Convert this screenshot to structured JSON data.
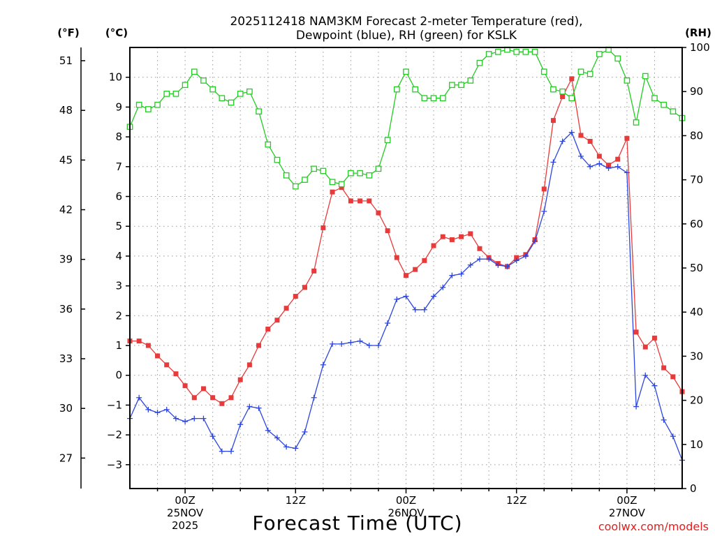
{
  "chart_data": {
    "type": "line",
    "title_line1": "2025112418 NAM3KM Forecast 2-meter Temperature (red),",
    "title_line2": "Dewpoint (blue), RH (green) for KSLK",
    "xlabel": "Forecast Time (UTC)",
    "credit": "coolwx.com/models",
    "units": {
      "fahrenheit": "(°F)",
      "celsius": "(°C)",
      "rh": "(RH)"
    },
    "x_hours_range": [
      -6,
      54
    ],
    "y_celsius_range": [
      -3.8,
      11.0
    ],
    "y_rh_range": [
      0,
      100
    ],
    "celsius_ticks": [
      -3,
      -2,
      -1,
      0,
      1,
      2,
      3,
      4,
      5,
      6,
      7,
      8,
      9,
      10
    ],
    "fahrenheit_ticks": [
      27,
      30,
      33,
      36,
      39,
      42,
      45,
      48,
      51
    ],
    "rh_ticks": [
      0,
      10,
      20,
      30,
      40,
      50,
      60,
      70,
      80,
      90,
      100
    ],
    "x_ticks": [
      {
        "hour": 0,
        "lines": [
          "00Z",
          "25NOV",
          "2025"
        ]
      },
      {
        "hour": 12,
        "lines": [
          "12Z"
        ]
      },
      {
        "hour": 24,
        "lines": [
          "00Z",
          "26NOV"
        ]
      },
      {
        "hour": 36,
        "lines": [
          "12Z"
        ]
      },
      {
        "hour": 48,
        "lines": [
          "00Z",
          "27NOV"
        ]
      }
    ],
    "series": [
      {
        "name": "Temperature",
        "units": "C",
        "color": "#e83a3a",
        "marker": "filled-square",
        "x": [
          -6,
          -5,
          -4,
          -3,
          -2,
          -1,
          0,
          1,
          2,
          3,
          4,
          5,
          6,
          7,
          8,
          9,
          10,
          11,
          12,
          13,
          14,
          15,
          16,
          17,
          18,
          19,
          20,
          21,
          22,
          23,
          24,
          25,
          26,
          27,
          28,
          29,
          30,
          31,
          32,
          33,
          34,
          35,
          36,
          37,
          38,
          39,
          40,
          41,
          42,
          43,
          44,
          45,
          46,
          47,
          48,
          49,
          50,
          51,
          52,
          53,
          54
        ],
        "values": [
          1.15,
          1.15,
          1.0,
          0.65,
          0.35,
          0.05,
          -0.35,
          -0.75,
          -0.45,
          -0.75,
          -0.95,
          -0.75,
          -0.15,
          0.35,
          1.0,
          1.55,
          1.85,
          2.25,
          2.65,
          2.95,
          3.5,
          4.95,
          6.15,
          6.3,
          5.85,
          5.85,
          5.85,
          5.45,
          4.85,
          3.95,
          3.35,
          3.55,
          3.85,
          4.35,
          4.65,
          4.55,
          4.65,
          4.75,
          4.25,
          3.95,
          3.75,
          3.65,
          3.95,
          4.05,
          4.55,
          6.25,
          8.55,
          9.35,
          9.95,
          8.05,
          7.85,
          7.35,
          7.05,
          7.25,
          7.95,
          1.45,
          0.95,
          1.25,
          0.25,
          -0.05,
          -0.55
        ]
      },
      {
        "name": "Dewpoint",
        "units": "C",
        "color": "#2b45e0",
        "marker": "plus",
        "x": [
          -6,
          -5,
          -4,
          -3,
          -2,
          -1,
          0,
          1,
          2,
          3,
          4,
          5,
          6,
          7,
          8,
          9,
          10,
          11,
          12,
          13,
          14,
          15,
          16,
          17,
          18,
          19,
          20,
          21,
          22,
          23,
          24,
          25,
          26,
          27,
          28,
          29,
          30,
          31,
          32,
          33,
          34,
          35,
          36,
          37,
          38,
          39,
          40,
          41,
          42,
          43,
          44,
          45,
          46,
          47,
          48,
          49,
          50,
          51,
          52,
          53,
          54
        ],
        "values": [
          -1.45,
          -0.75,
          -1.15,
          -1.25,
          -1.15,
          -1.45,
          -1.55,
          -1.45,
          -1.45,
          -2.05,
          -2.55,
          -2.55,
          -1.65,
          -1.05,
          -1.1,
          -1.85,
          -2.1,
          -2.4,
          -2.45,
          -1.9,
          -0.75,
          0.35,
          1.05,
          1.05,
          1.1,
          1.15,
          1.0,
          1.0,
          1.75,
          2.55,
          2.65,
          2.2,
          2.2,
          2.65,
          2.95,
          3.35,
          3.4,
          3.7,
          3.9,
          3.9,
          3.7,
          3.65,
          3.85,
          4.0,
          4.5,
          5.5,
          7.15,
          7.85,
          8.15,
          7.35,
          7.0,
          7.1,
          6.95,
          7.0,
          6.8,
          -1.05,
          0.0,
          -0.35,
          -1.5,
          -2.05,
          -2.85
        ]
      },
      {
        "name": "Relative Humidity",
        "units": "%",
        "color": "#22cc22",
        "marker": "open-square",
        "x": [
          -6,
          -5,
          -4,
          -3,
          -2,
          -1,
          0,
          1,
          2,
          3,
          4,
          5,
          6,
          7,
          8,
          9,
          10,
          11,
          12,
          13,
          14,
          15,
          16,
          17,
          18,
          19,
          20,
          21,
          22,
          23,
          24,
          25,
          26,
          27,
          28,
          29,
          30,
          31,
          32,
          33,
          34,
          35,
          36,
          37,
          38,
          39,
          40,
          41,
          42,
          43,
          44,
          45,
          46,
          47,
          48,
          49,
          50,
          51,
          52,
          53,
          54
        ],
        "values": [
          82,
          87,
          86,
          87,
          89.5,
          89.5,
          91.5,
          94.5,
          92.5,
          90.5,
          88.5,
          87.5,
          89.5,
          90,
          85.5,
          78,
          74.5,
          71,
          68.5,
          70,
          72.5,
          72,
          69.5,
          69,
          71.5,
          71.5,
          71,
          72.5,
          79,
          90.5,
          94.5,
          90.5,
          88.5,
          88.5,
          88.5,
          91.5,
          91.5,
          92.5,
          96.5,
          98.5,
          99,
          99.5,
          99,
          99,
          99,
          94.5,
          90.5,
          90,
          88.5,
          94.5,
          94,
          98.5,
          99.5,
          97.5,
          92.5,
          83,
          93.5,
          88.5,
          87,
          85.5,
          84
        ]
      }
    ]
  }
}
